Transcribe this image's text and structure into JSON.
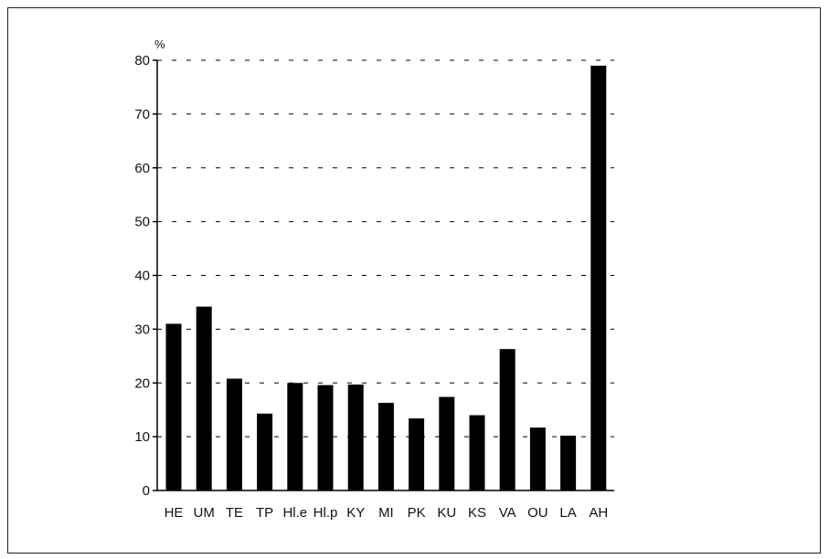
{
  "chart_data": {
    "type": "bar",
    "unit": "%",
    "categories": [
      "HE",
      "UM",
      "TE",
      "TP",
      "Hl.e",
      "Hl.p",
      "KY",
      "MI",
      "PK",
      "KU",
      "KS",
      "VA",
      "OU",
      "LA",
      "AH"
    ],
    "values": [
      31,
      34.2,
      20.8,
      14.3,
      20,
      19.6,
      19.7,
      16.3,
      13.4,
      17.4,
      14,
      26.3,
      11.7,
      10.2,
      79
    ],
    "ylim": [
      0,
      80
    ],
    "yticks": [
      "0",
      "10",
      "20",
      "30",
      "40",
      "50",
      "60",
      "70",
      "80"
    ],
    "grid": "dashed-horizontal",
    "bar_color": "#000000"
  }
}
